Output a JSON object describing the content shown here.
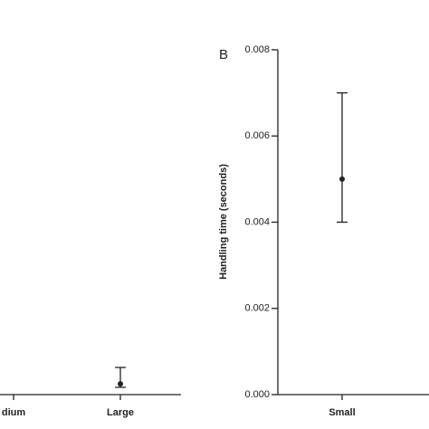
{
  "chart_data": [
    {
      "type": "errorpoint",
      "categories": [
        "dium",
        "Large"
      ],
      "values": [
        null,
        0.00025
      ],
      "lower": [
        null,
        0.00017
      ],
      "upper": [
        null,
        0.00063
      ],
      "ylim": [
        0,
        0.008
      ],
      "color": "#222222"
    },
    {
      "type": "errorpoint",
      "panel_label": "B",
      "y_label": "Handling time (seconds)",
      "categories": [
        "Small"
      ],
      "values": [
        0.005
      ],
      "lower": [
        0.004
      ],
      "upper": [
        0.007
      ],
      "ylim": [
        0,
        0.008
      ],
      "yticks": [
        {
          "value": 0,
          "label": "0.000"
        },
        {
          "value": 0.002,
          "label": "0.002"
        },
        {
          "value": 0.004,
          "label": "0.004"
        },
        {
          "value": 0.006,
          "label": "0.006"
        },
        {
          "value": 0.008,
          "label": "0.008"
        }
      ],
      "color": "#222222"
    }
  ]
}
